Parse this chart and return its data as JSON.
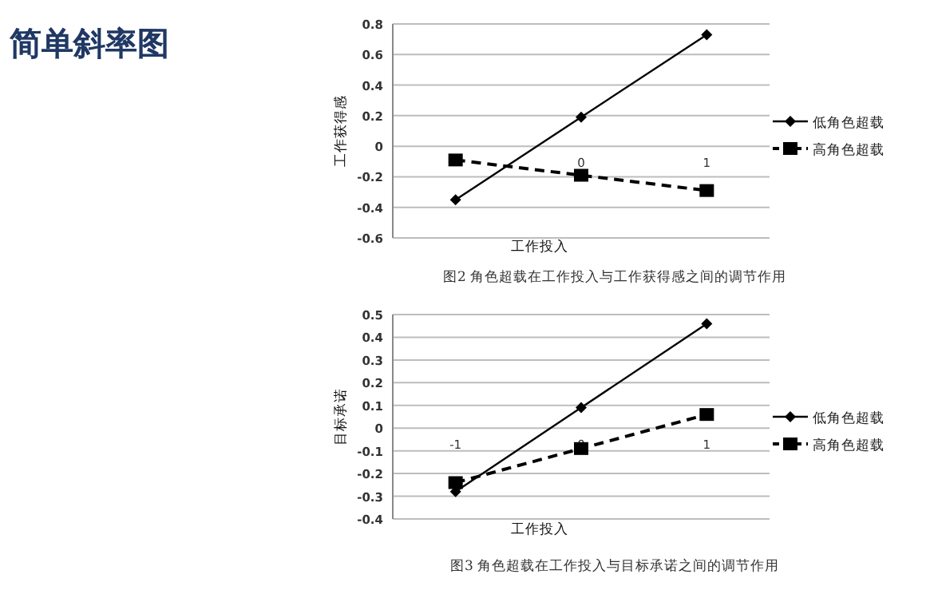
{
  "chart_data": [
    {
      "type": "line",
      "title": "简单斜率图",
      "ylabel": "工作获得感",
      "xlabel": "工作投入",
      "categories": [
        null,
        "0",
        "1"
      ],
      "series": [
        {
          "name": "低角色超载",
          "color": "#000000",
          "marker": "diamond",
          "line_style": "solid",
          "values": [
            -0.35,
            0.19,
            0.73
          ]
        },
        {
          "name": "高角色超载",
          "color": "#000000",
          "marker": "square",
          "line_style": "dashed",
          "values": [
            -0.09,
            -0.19,
            -0.29
          ]
        }
      ],
      "ylim": [
        -0.6,
        0.8
      ],
      "yticks": [
        -0.6,
        -0.4,
        -0.2,
        0,
        0.2,
        0.4,
        0.6,
        0.8
      ],
      "grid": "y",
      "legend": "right",
      "annotations": [
        "图2 角色超载在工作投入与工作获得感之间的调节作用"
      ]
    },
    {
      "type": "line",
      "ylabel": "目标承诺",
      "xlabel": "工作投入",
      "categories": [
        "-1",
        "0",
        "1"
      ],
      "series": [
        {
          "name": "低角色超载",
          "color": "#000000",
          "marker": "diamond",
          "line_style": "solid",
          "values": [
            -0.28,
            0.09,
            0.46
          ]
        },
        {
          "name": "高角色超载",
          "color": "#000000",
          "marker": "square",
          "line_style": "dashed",
          "values": [
            -0.24,
            -0.09,
            0.06
          ]
        }
      ],
      "ylim": [
        -0.4,
        0.5
      ],
      "yticks": [
        -0.4,
        -0.3,
        -0.2,
        -0.1,
        0,
        0.1,
        0.2,
        0.3,
        0.4,
        0.5
      ],
      "grid": "y",
      "legend": "right",
      "annotations": [
        "图3 角色超载在工作投入与目标承诺之间的调节作用"
      ]
    }
  ]
}
